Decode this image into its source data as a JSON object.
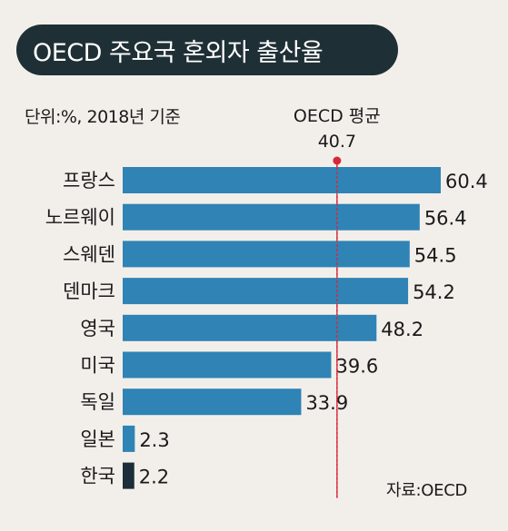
{
  "title": "OECD 주요국 혼외자 출산율",
  "unit_note": "단위:%, 2018년 기준",
  "source": "자료:OECD",
  "colors": {
    "bar": "#2f83b5",
    "highlight_bar": "#1b2e3a",
    "avg_line": "#d9273a",
    "title_bg": "#1f2f36"
  },
  "chart_data": {
    "type": "bar",
    "orientation": "horizontal",
    "categories": [
      "프랑스",
      "노르웨이",
      "스웨덴",
      "덴마크",
      "영국",
      "미국",
      "독일",
      "일본",
      "한국"
    ],
    "values": [
      60.4,
      56.4,
      54.5,
      54.2,
      48.2,
      39.6,
      33.9,
      2.3,
      2.2
    ],
    "value_labels": [
      "60.4",
      "56.4",
      "54.5",
      "54.2",
      "48.2",
      "39.6",
      "33.9",
      "2.3",
      "2.2"
    ],
    "highlight": "한국",
    "reference_line": {
      "label": "OECD 평균",
      "value": 40.7,
      "value_label": "40.7"
    },
    "xlim": [
      0,
      60.4
    ]
  }
}
